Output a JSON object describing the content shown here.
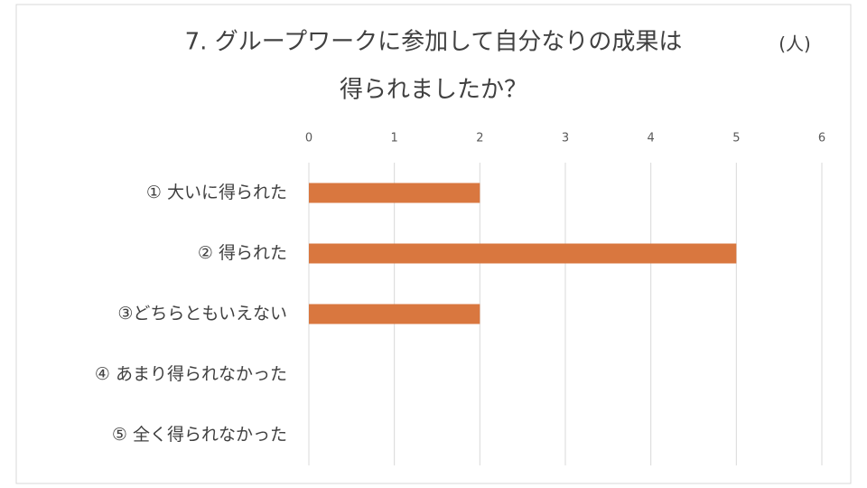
{
  "chart_data": {
    "type": "bar",
    "orientation": "horizontal",
    "title_lines": [
      "7.  グループワークに参加して自分なりの成果は",
      "得られましたか？"
    ],
    "unit_label": "(人)",
    "categories": [
      "① 大いに得られた",
      "② 得られた",
      "③どちらともいえない",
      "④ あまり得られなかった",
      "⑤ 全く得られなかった"
    ],
    "values": [
      2,
      5,
      2,
      0,
      0
    ],
    "color": "#d9773f",
    "xlim": [
      0,
      6
    ],
    "xticks": [
      0,
      1,
      2,
      3,
      4,
      5,
      6
    ],
    "grid": true
  }
}
